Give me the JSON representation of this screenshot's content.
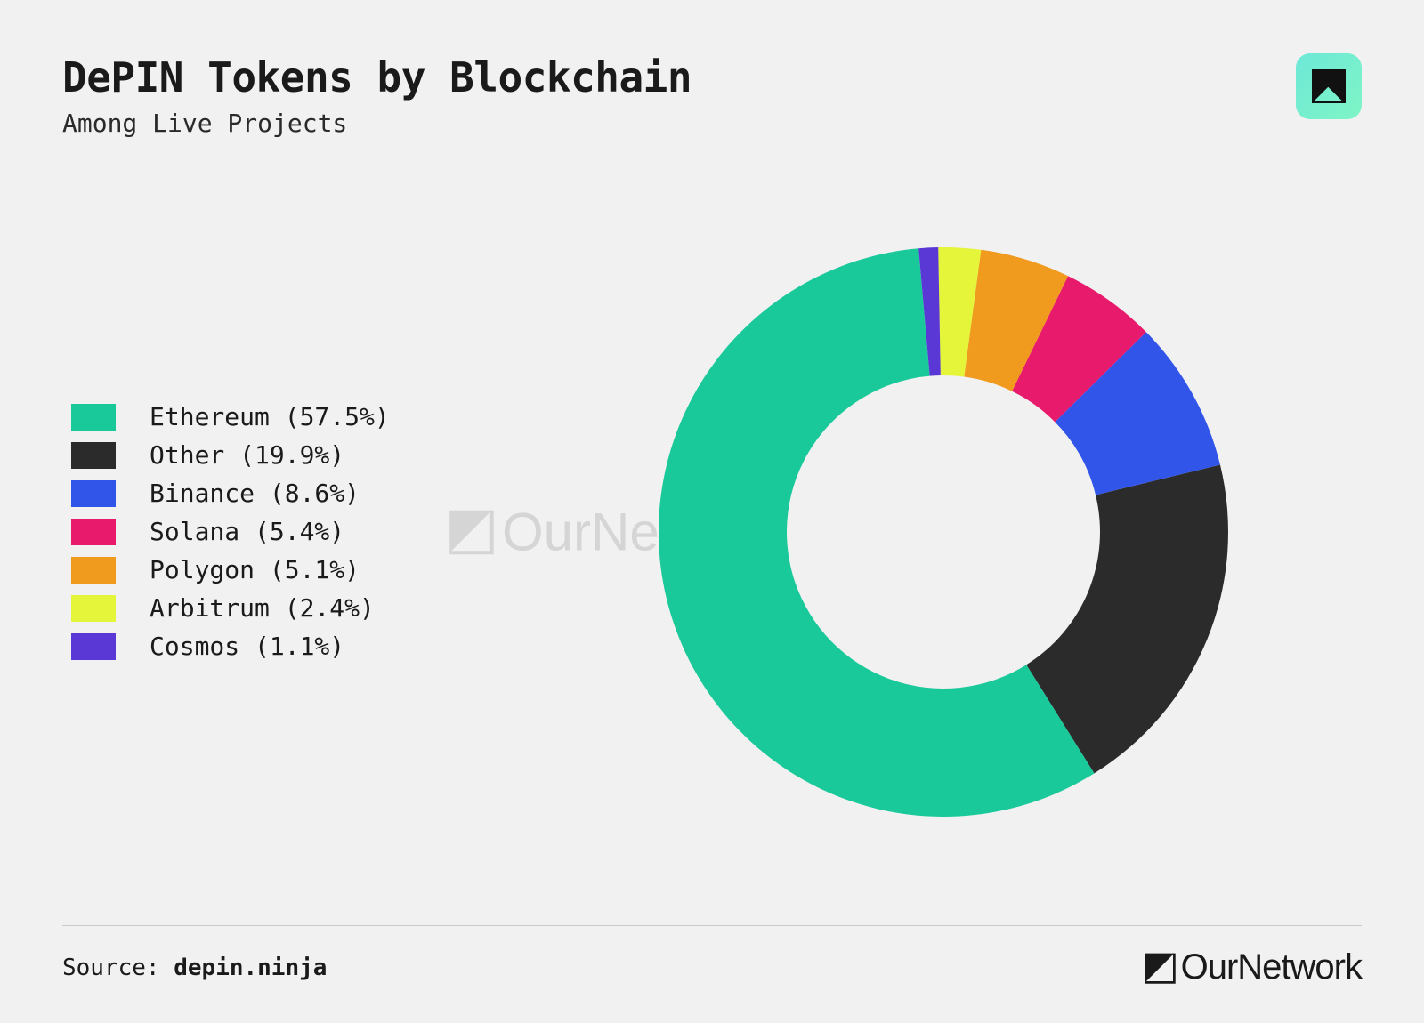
{
  "title": "DePIN Tokens by Blockchain",
  "subtitle": "Among Live Projects",
  "source_label": "Source: ",
  "source_name": "depin.ninja",
  "brand_name": "OurNetwork",
  "watermark_text": "OurNetwork",
  "background_color": "#f1f1f1",
  "text_color": "#1a1a1a",
  "title_fontsize": 46,
  "subtitle_fontsize": 28,
  "legend_fontsize": 28,
  "logo_badge": {
    "gradient_start": "#6de8d8",
    "gradient_end": "#7ff5c5",
    "icon_color": "#111111"
  },
  "chart": {
    "type": "donut",
    "outer_radius": 320,
    "inner_radius": 176,
    "start_angle_deg": -5,
    "direction": "counterclockwise",
    "center_hole_color": "#f1f1f1",
    "slices": [
      {
        "label": "Ethereum",
        "value": 57.5,
        "color": "#1ac99a"
      },
      {
        "label": "Other",
        "value": 19.9,
        "color": "#2b2b2b"
      },
      {
        "label": "Binance",
        "value": 8.6,
        "color": "#3055e8"
      },
      {
        "label": "Solana",
        "value": 5.4,
        "color": "#e81a6b"
      },
      {
        "label": "Polygon",
        "value": 5.1,
        "color": "#f09a1e"
      },
      {
        "label": "Arbitrum",
        "value": 2.4,
        "color": "#e4f53a"
      },
      {
        "label": "Cosmos",
        "value": 1.1,
        "color": "#5a38d6"
      }
    ]
  },
  "legend": {
    "swatch_width": 50,
    "swatch_height": 30,
    "items": [
      {
        "label": "Ethereum (57.5%)",
        "color": "#1ac99a"
      },
      {
        "label": "Other (19.9%)",
        "color": "#2b2b2b"
      },
      {
        "label": "Binance (8.6%)",
        "color": "#3055e8"
      },
      {
        "label": "Solana (5.4%)",
        "color": "#e81a6b"
      },
      {
        "label": "Polygon (5.1%)",
        "color": "#f09a1e"
      },
      {
        "label": "Arbitrum (2.4%)",
        "color": "#e4f53a"
      },
      {
        "label": "Cosmos (1.1%)",
        "color": "#5a38d6"
      }
    ]
  },
  "footer_divider_color": "#c9c9c9"
}
